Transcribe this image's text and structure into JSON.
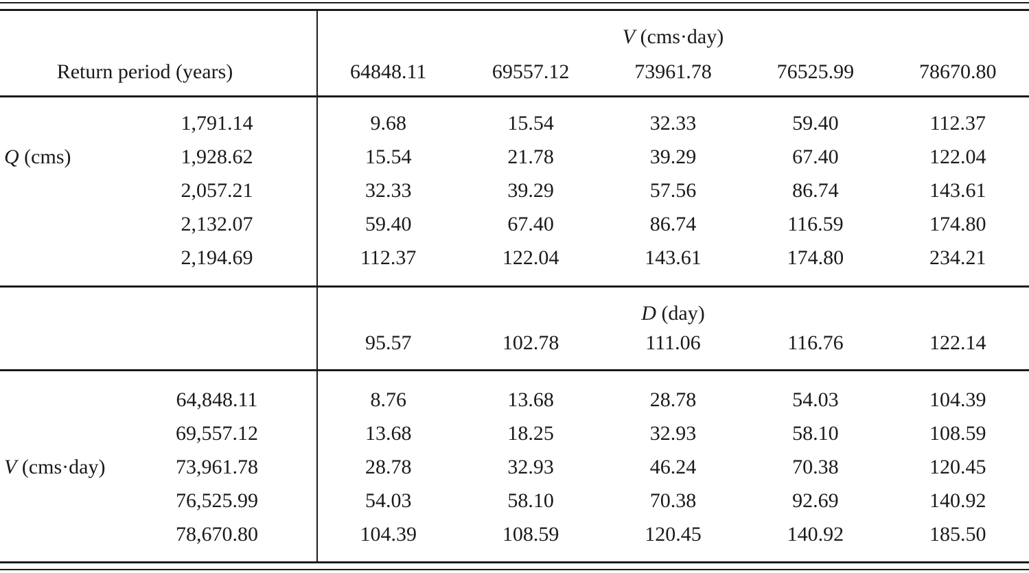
{
  "header": {
    "left_label": "Return period (years)",
    "group": {
      "var": "V",
      "rest": " (cms·day)"
    },
    "cols": [
      "64848.11",
      "69557.12",
      "73961.78",
      "76525.99",
      "78670.80"
    ]
  },
  "sections": [
    {
      "group": {
        "var": "Q",
        "rest": " (cms)"
      },
      "rows": [
        {
          "period": "1,791.14",
          "values": [
            "9.68",
            "15.54",
            "32.33",
            "59.40",
            "112.37"
          ]
        },
        {
          "period": "1,928.62",
          "values": [
            "15.54",
            "21.78",
            "39.29",
            "67.40",
            "122.04"
          ]
        },
        {
          "period": "2,057.21",
          "values": [
            "32.33",
            "39.29",
            "57.56",
            "86.74",
            "143.61"
          ]
        },
        {
          "period": "2,132.07",
          "values": [
            "59.40",
            "67.40",
            "86.74",
            "116.59",
            "174.80"
          ]
        },
        {
          "period": "2,194.69",
          "values": [
            "112.37",
            "122.04",
            "143.61",
            "174.80",
            "234.21"
          ]
        }
      ]
    },
    {
      "group": {
        "var": "V",
        "rest": " (cms·day)"
      },
      "rows": [
        {
          "period": "64,848.11",
          "values": [
            "8.76",
            "13.68",
            "28.78",
            "54.03",
            "104.39"
          ]
        },
        {
          "period": "69,557.12",
          "values": [
            "13.68",
            "18.25",
            "32.93",
            "58.10",
            "108.59"
          ]
        },
        {
          "period": "73,961.78",
          "values": [
            "28.78",
            "32.93",
            "46.24",
            "70.38",
            "120.45"
          ]
        },
        {
          "period": "76,525.99",
          "values": [
            "54.03",
            "58.10",
            "70.38",
            "92.69",
            "140.92"
          ]
        },
        {
          "period": "78,670.80",
          "values": [
            "104.39",
            "108.59",
            "120.45",
            "140.92",
            "185.50"
          ]
        }
      ]
    }
  ],
  "mid": {
    "group": {
      "var": "D",
      "rest": " (day)"
    },
    "values": [
      "95.57",
      "102.78",
      "111.06",
      "116.76",
      "122.14"
    ]
  }
}
